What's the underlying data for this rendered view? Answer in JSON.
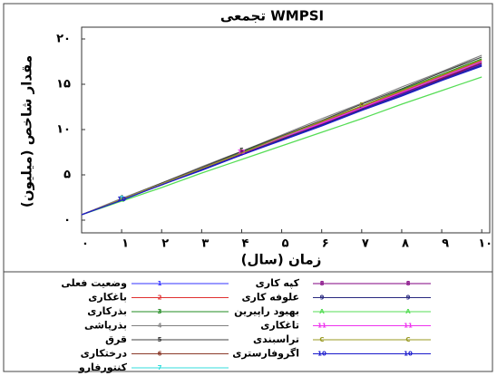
{
  "chart_data": {
    "type": "line",
    "title": "WMPSI تجمعی",
    "x_label": "زمان (سال)",
    "y_label": "مقدار شاخص (میلیون)",
    "x": [
      0,
      1,
      2,
      3,
      4,
      5,
      6,
      7,
      8,
      9,
      10
    ],
    "xlim": [
      0,
      10.2
    ],
    "ylim": [
      -1.4,
      21.3
    ],
    "xticks": [
      {
        "value": 0,
        "label": "۰"
      },
      {
        "value": 1,
        "label": "۱"
      },
      {
        "value": 2,
        "label": "۲"
      },
      {
        "value": 3,
        "label": "۳"
      },
      {
        "value": 4,
        "label": "۴"
      },
      {
        "value": 5,
        "label": "۵"
      },
      {
        "value": 6,
        "label": "۶"
      },
      {
        "value": 7,
        "label": "۷"
      },
      {
        "value": 8,
        "label": "۸"
      },
      {
        "value": 9,
        "label": "۹"
      },
      {
        "value": 10,
        "label": "۱۰"
      }
    ],
    "yticks": [
      {
        "value": 0,
        "label": "۰"
      },
      {
        "value": 5,
        "label": "۵"
      },
      {
        "value": 10,
        "label": "۱۰"
      },
      {
        "value": 15,
        "label": "۱۵"
      },
      {
        "value": 20,
        "label": "۲۰"
      }
    ],
    "grid": false,
    "series": [
      {
        "name": "وضعیت فعلی",
        "marker": "1",
        "color": "#3333ff",
        "values": [
          0.6,
          2.3,
          3.9,
          5.6,
          7.2,
          8.9,
          10.6,
          12.2,
          13.9,
          15.5,
          17.2
        ]
      },
      {
        "name": "باغکاری",
        "marker": "2",
        "color": "#e03030",
        "values": [
          0.6,
          2.3,
          4.0,
          5.7,
          7.4,
          9.1,
          10.8,
          12.5,
          14.2,
          15.9,
          17.6
        ]
      },
      {
        "name": "بذرکاری",
        "marker": "3",
        "color": "#228b22",
        "values": [
          0.6,
          2.3,
          4.0,
          5.8,
          7.5,
          9.2,
          10.9,
          12.6,
          14.4,
          16.1,
          17.8
        ]
      },
      {
        "name": "بذرپاشی",
        "marker": "4",
        "color": "#808080",
        "values": [
          0.6,
          2.4,
          4.1,
          5.9,
          7.6,
          9.4,
          11.2,
          12.9,
          14.7,
          16.4,
          18.2
        ]
      },
      {
        "name": "قرق",
        "marker": "5",
        "color": "#404040",
        "values": [
          0.6,
          2.3,
          4.1,
          5.8,
          7.6,
          9.3,
          11.0,
          12.8,
          14.5,
          16.3,
          18.0
        ]
      },
      {
        "name": "درختکاری",
        "marker": "6",
        "color": "#8b3a2a",
        "values": [
          0.6,
          2.3,
          4.0,
          5.6,
          7.3,
          9.0,
          10.7,
          12.4,
          14.0,
          15.7,
          17.4
        ]
      },
      {
        "name": "کنتورفارو",
        "marker": "7",
        "color": "#33dddd",
        "values": [
          0.6,
          2.3,
          4.0,
          5.7,
          7.4,
          9.1,
          10.7,
          12.4,
          14.1,
          15.8,
          17.5
        ]
      },
      {
        "name": "کپه کاری",
        "marker": "8",
        "color": "#800080",
        "values": [
          0.6,
          2.3,
          3.9,
          5.6,
          7.3,
          8.9,
          10.6,
          12.3,
          14.0,
          15.6,
          17.3
        ]
      },
      {
        "name": "علوفه کاری",
        "marker": "9",
        "color": "#2a2a80",
        "values": [
          0.6,
          2.3,
          3.9,
          5.6,
          7.2,
          8.9,
          10.5,
          12.2,
          13.8,
          15.5,
          17.1
        ]
      },
      {
        "name": "بهبود راپیرین",
        "marker": "A",
        "color": "#55dd55",
        "values": [
          0.6,
          2.1,
          3.6,
          5.2,
          6.7,
          8.2,
          9.7,
          11.2,
          12.8,
          14.3,
          15.8
        ]
      },
      {
        "name": "تاغکاری",
        "marker": "11",
        "color": "#ee33ee",
        "values": [
          0.6,
          2.3,
          4.0,
          5.7,
          7.4,
          9.1,
          10.7,
          12.4,
          14.1,
          15.8,
          17.5
        ]
      },
      {
        "name": "تراسبندی",
        "marker": "C",
        "color": "#999922",
        "values": [
          0.6,
          2.3,
          4.0,
          5.7,
          7.4,
          9.2,
          10.9,
          12.6,
          14.3,
          16.0,
          17.7
        ]
      },
      {
        "name": "اگروفارستری",
        "marker": "10",
        "color": "#1a1acc",
        "values": [
          0.6,
          2.2,
          3.9,
          5.5,
          7.2,
          8.8,
          10.4,
          12.1,
          13.7,
          15.4,
          17.0
        ]
      }
    ]
  }
}
